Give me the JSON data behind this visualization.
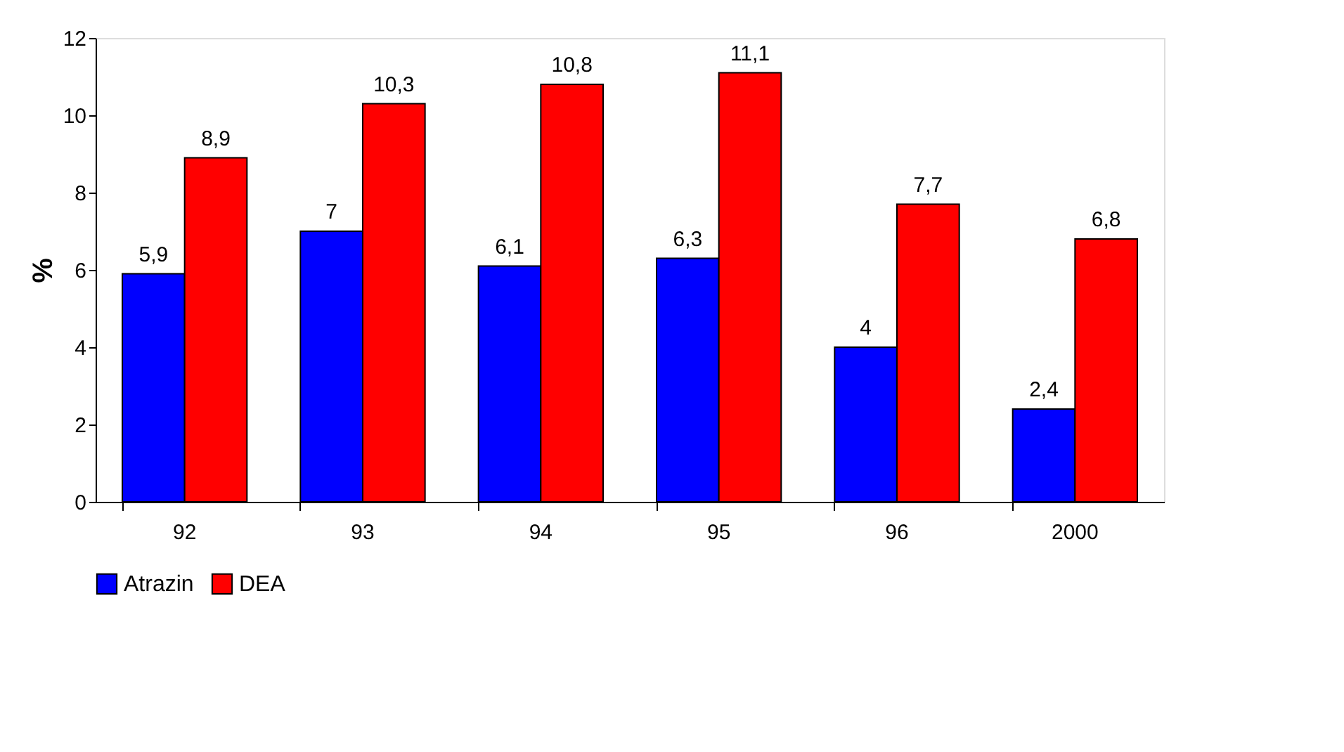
{
  "chart_data": {
    "type": "bar",
    "ylabel": "%",
    "categories": [
      "92",
      "93",
      "94",
      "95",
      "96",
      "2000"
    ],
    "series": [
      {
        "name": "Atrazin",
        "color": "#0000ff",
        "values": [
          5.9,
          7,
          6.1,
          6.3,
          4,
          2.4
        ],
        "value_labels": [
          "5,9",
          "7",
          "6,1",
          "6,3",
          "4",
          "2,4"
        ]
      },
      {
        "name": "DEA",
        "color": "#ff0000",
        "values": [
          8.9,
          10.3,
          10.8,
          11.1,
          7.7,
          6.8
        ],
        "value_labels": [
          "8,9",
          "10,3",
          "10,8",
          "11,1",
          "7,7",
          "6,8"
        ]
      }
    ],
    "ylim": [
      0,
      12
    ],
    "yticks": [
      0,
      2,
      4,
      6,
      8,
      10,
      12
    ],
    "grid": false,
    "legend": "bottom left"
  }
}
